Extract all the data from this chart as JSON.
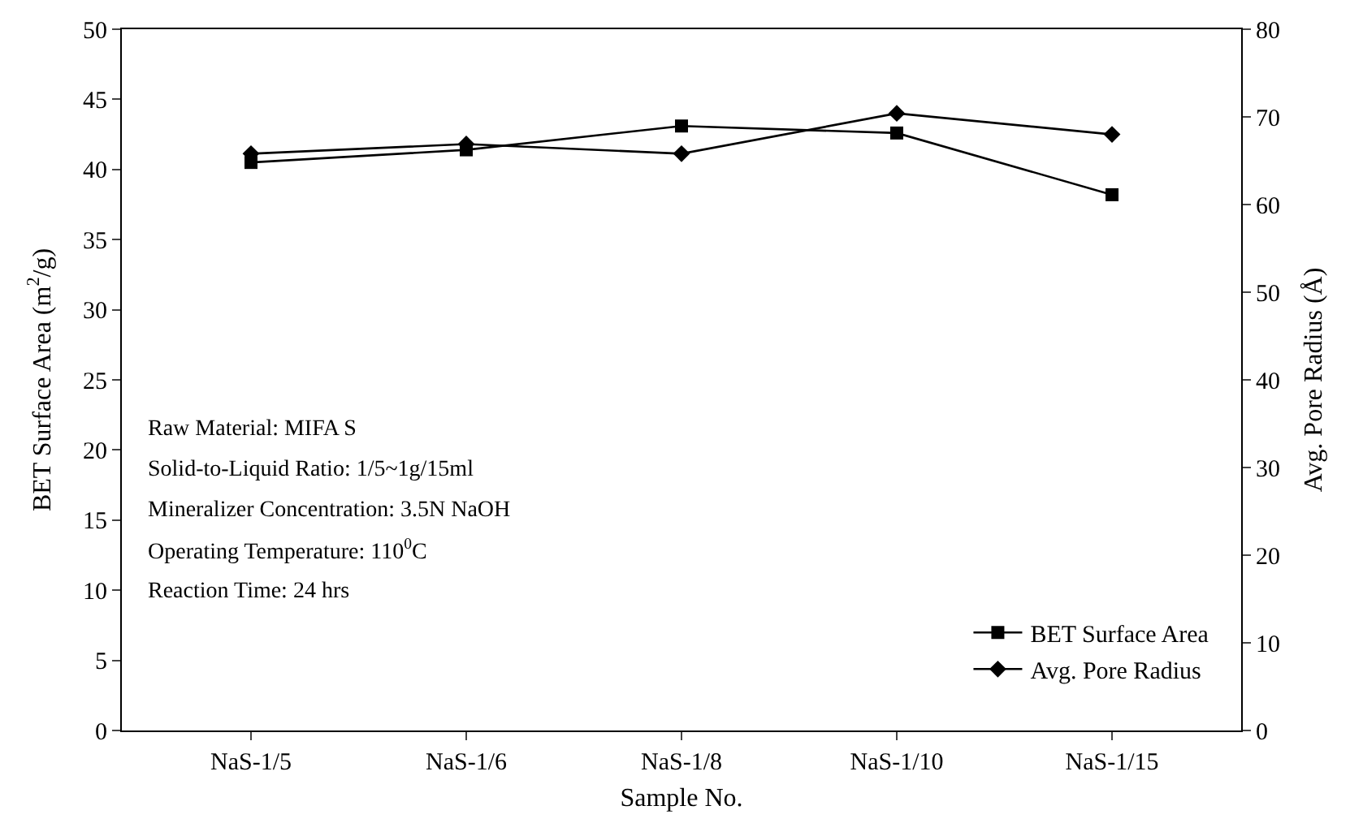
{
  "chart_data": {
    "type": "line",
    "xlabel": "Sample No.",
    "ylabel": "BET Surface Area (m$^{2}$/g)",
    "y2label": "Avg. Pore Radius (Å)",
    "categories": [
      "NaS-1/5",
      "NaS-1/6",
      "NaS-1/8",
      "NaS-1/10",
      "NaS-1/15"
    ],
    "series": [
      {
        "name": "BET Surface Area",
        "color": "#000000",
        "marker": "square",
        "values": [
          40.5,
          41.4,
          43.1,
          42.6,
          38.2
        ]
      },
      {
        "name": "Avg. Pore Radius",
        "color": "#000000",
        "marker": "diamond",
        "axis": "y2",
        "values": [
          65.8,
          66.9,
          65.8,
          70.4,
          68.0
        ]
      }
    ],
    "ylim": [
      0,
      50
    ],
    "yticks": [
      0,
      5,
      10,
      15,
      20,
      25,
      30,
      35,
      40,
      45,
      50
    ],
    "y2lim": [
      0,
      80
    ],
    "y2ticks": [
      0,
      10,
      20,
      30,
      40,
      50,
      60,
      70,
      80
    ],
    "legend": "bottom right",
    "line_style": "solid",
    "annotations": [
      "Raw Material: MIFA S",
      "Solid-to-Liquid Ratio: 1/5~1g/15ml",
      "Mineralizer Concentration: 3.5N NaOH",
      "Operating Temperature: 110$^{0}$C",
      "Reaction Time: 24 hrs"
    ]
  }
}
